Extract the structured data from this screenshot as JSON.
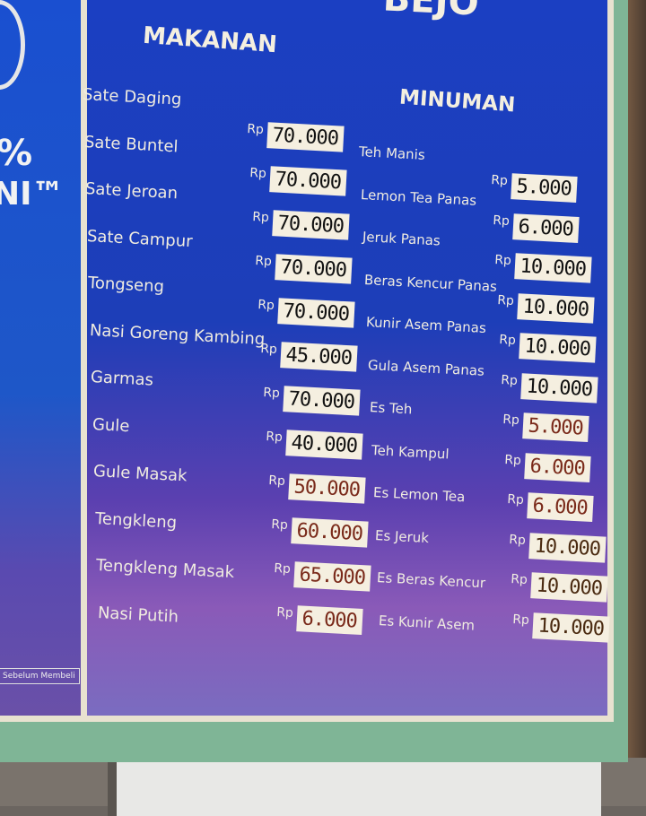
{
  "sign": {
    "brand_partial": "BEJO",
    "left_panel": {
      "logo_percent": "%",
      "logo_text": "NI™",
      "note": "Sebelum Membeli"
    },
    "currency": "Rp",
    "makanan": {
      "title": "MAKANAN",
      "items": [
        {
          "name": "Sate Daging",
          "price": "70.000"
        },
        {
          "name": "Sate Buntel",
          "price": "70.000"
        },
        {
          "name": "Sate Jeroan",
          "price": "70.000"
        },
        {
          "name": "Sate Campur",
          "price": "70.000"
        },
        {
          "name": "Tongseng",
          "price": "70.000"
        },
        {
          "name": "Nasi Goreng Kambing",
          "price": "45.000"
        },
        {
          "name": "Garmas",
          "price": "70.000"
        },
        {
          "name": "Gule",
          "price": "40.000"
        },
        {
          "name": "Gule Masak",
          "price": "50.000"
        },
        {
          "name": "Tengkleng",
          "price": "60.000"
        },
        {
          "name": "Tengkleng Masak",
          "price": "65.000"
        },
        {
          "name": "Nasi Putih",
          "price": "6.000"
        }
      ]
    },
    "minuman": {
      "title": "MINUMAN",
      "items": [
        {
          "name": "Teh Manis",
          "price": "5.000"
        },
        {
          "name": "Lemon Tea Panas",
          "price": "6.000"
        },
        {
          "name": "Jeruk Panas",
          "price": "10.000"
        },
        {
          "name": "Beras Kencur Panas",
          "price": "10.000"
        },
        {
          "name": "Kunir Asem Panas",
          "price": "10.000"
        },
        {
          "name": "Gula Asem Panas",
          "price": "10.000"
        },
        {
          "name": "Es Teh",
          "price": "5.000"
        },
        {
          "name": "Teh Kampul",
          "price": "6.000"
        },
        {
          "name": "Es Lemon Tea",
          "price": "6.000"
        },
        {
          "name": "Es Jeruk",
          "price": "10.000"
        },
        {
          "name": "Es Beras Kencur",
          "price": "10.000"
        },
        {
          "name": "Es Kunir Asem",
          "price": "10.000"
        }
      ]
    },
    "colors": {
      "board_blue": "#1b3fc2",
      "board_purple": "#8a5ab8",
      "price_tag": "#f5efe0",
      "frame_green": "#7fb596"
    }
  }
}
